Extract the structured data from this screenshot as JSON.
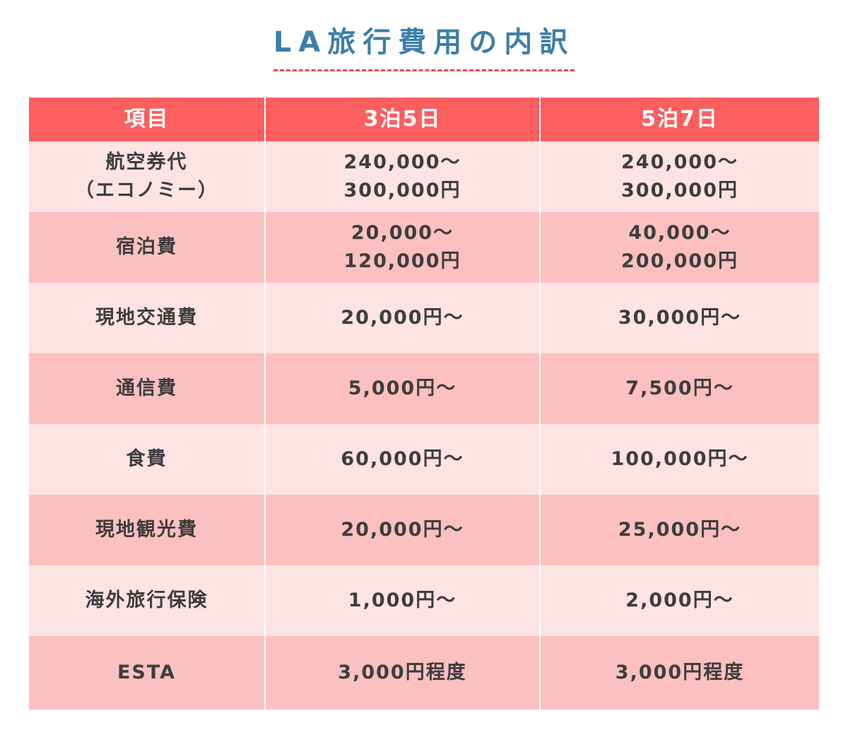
{
  "title": "LA旅行費用の内訳",
  "table": {
    "headers": [
      "項目",
      "3泊5日",
      "5泊7日"
    ],
    "rows": [
      {
        "item": [
          "航空券代",
          "（エコノミー）"
        ],
        "short": [
          "240,000～",
          "300,000円"
        ],
        "long": [
          "240,000～",
          "300,000円"
        ]
      },
      {
        "item": [
          "宿泊費"
        ],
        "short": [
          "20,000～",
          "120,000円"
        ],
        "long": [
          "40,000～",
          "200,000円"
        ]
      },
      {
        "item": [
          "現地交通費"
        ],
        "short": [
          "20,000円～"
        ],
        "long": [
          "30,000円～"
        ]
      },
      {
        "item": [
          "通信費"
        ],
        "short": [
          "5,000円～"
        ],
        "long": [
          "7,500円～"
        ]
      },
      {
        "item": [
          "食費"
        ],
        "short": [
          "60,000円～"
        ],
        "long": [
          "100,000円～"
        ]
      },
      {
        "item": [
          "現地観光費"
        ],
        "short": [
          "20,000円～"
        ],
        "long": [
          "25,000円～"
        ]
      },
      {
        "item": [
          "海外旅行保険"
        ],
        "short": [
          "1,000円～"
        ],
        "long": [
          "2,000円～"
        ]
      },
      {
        "item": [
          "ESTA"
        ],
        "short": [
          "3,000円程度"
        ],
        "long": [
          "3,000円程度"
        ]
      }
    ]
  },
  "colors": {
    "title": "#3d7fa8",
    "underline": "#ef4a52",
    "header_bg": "#fd5f5f",
    "row_light": "#fee3e3",
    "row_dark": "#fcc0c0",
    "text": "#3d3d3d"
  }
}
